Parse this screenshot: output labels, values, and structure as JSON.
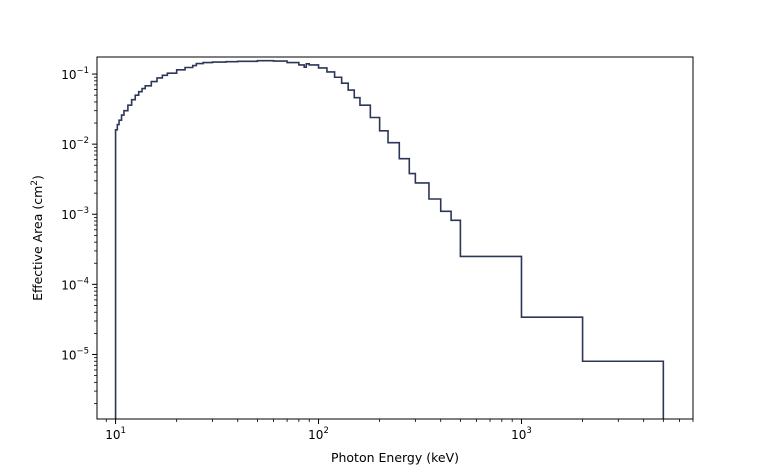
{
  "chart_data": {
    "type": "line",
    "drawstyle": "steps-post",
    "title": "",
    "xlabel": "Photon Energy (keV)",
    "ylabel_main": "Effective Area (cm",
    "ylabel_sup": "2",
    "ylabel_end": ")",
    "x_scale": "log",
    "y_scale": "log",
    "xlim": [
      8.1,
      7000
    ],
    "ylim": [
      1.2e-06,
      0.175
    ],
    "grid": false,
    "legend": "none",
    "line_color": "#2c3657",
    "x_ticks": [
      {
        "value": 10,
        "base": "10",
        "exp": "1"
      },
      {
        "value": 100,
        "base": "10",
        "exp": "2"
      },
      {
        "value": 1000,
        "base": "10",
        "exp": "3"
      }
    ],
    "y_ticks": [
      {
        "value": 1e-05,
        "base": "10",
        "exp": "−5"
      },
      {
        "value": 0.0001,
        "base": "10",
        "exp": "−4"
      },
      {
        "value": 0.001,
        "base": "10",
        "exp": "−3"
      },
      {
        "value": 0.01,
        "base": "10",
        "exp": "−2"
      },
      {
        "value": 0.1,
        "base": "10",
        "exp": "−1"
      }
    ],
    "series": [
      {
        "x": [
          10,
          10.2,
          10.4,
          10.7,
          11,
          11.5,
          12,
          12.5,
          13,
          13.5,
          14,
          15,
          16,
          17,
          18,
          20,
          22,
          24,
          25,
          27,
          30,
          35,
          40,
          50,
          60,
          70,
          80,
          85,
          87,
          90,
          100,
          110,
          120,
          130,
          140,
          150,
          160,
          180,
          200,
          220,
          250,
          280,
          300,
          350,
          400,
          450,
          500,
          1000,
          2000,
          5000
        ],
        "y": [
          0.016,
          0.019,
          0.022,
          0.026,
          0.03,
          0.036,
          0.043,
          0.05,
          0.056,
          0.062,
          0.068,
          0.078,
          0.088,
          0.096,
          0.103,
          0.115,
          0.124,
          0.132,
          0.141,
          0.146,
          0.148,
          0.15,
          0.152,
          0.155,
          0.153,
          0.146,
          0.135,
          0.125,
          0.14,
          0.135,
          0.122,
          0.107,
          0.09,
          0.074,
          0.059,
          0.046,
          0.036,
          0.024,
          0.0155,
          0.0105,
          0.0062,
          0.0038,
          0.0028,
          0.00165,
          0.0011,
          0.00082,
          0.00025,
          3.4e-05,
          8e-06,
          1.2e-06
        ]
      }
    ]
  }
}
